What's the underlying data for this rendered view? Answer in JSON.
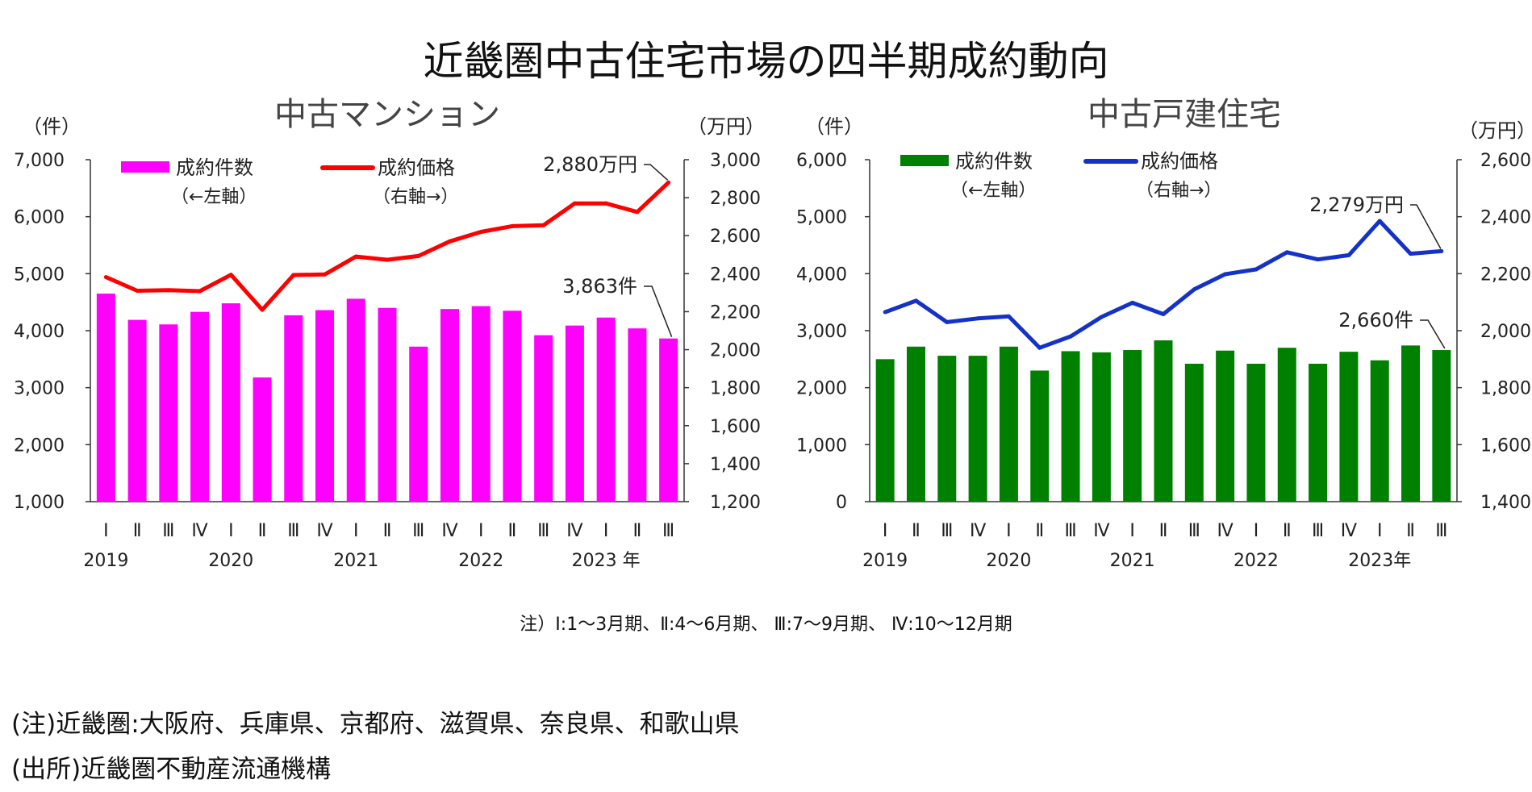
{
  "title": "近畿圏中古住宅市場の四半期成約動向",
  "quarter_note": "注）Ⅰ:1～3月期、Ⅱ:4～6月期、 Ⅲ:7～9月期、 Ⅳ:10～12月期",
  "footnotes": [
    "(注)近畿圏:大阪府、兵庫県、京都府、滋賀県、奈良県、和歌山県",
    "(出所)近畿圏不動産流通機構"
  ],
  "colors": {
    "mansion_bar": "#ff00ff",
    "mansion_line": "#ff0000",
    "house_bar": "#008000",
    "house_line": "#1432c8"
  },
  "chart_data": [
    {
      "type": "bar",
      "title": "中古マンション",
      "left_unit": "（件）",
      "right_unit": "（万円）",
      "quarters": [
        "Ⅰ",
        "Ⅱ",
        "Ⅲ",
        "Ⅳ",
        "Ⅰ",
        "Ⅱ",
        "Ⅲ",
        "Ⅳ",
        "Ⅰ",
        "Ⅱ",
        "Ⅲ",
        "Ⅳ",
        "Ⅰ",
        "Ⅱ",
        "Ⅲ",
        "Ⅳ",
        "Ⅰ",
        "Ⅱ",
        "Ⅲ"
      ],
      "year_labels": [
        {
          "label": "2019",
          "at": 0
        },
        {
          "label": "2020",
          "at": 4
        },
        {
          "label": "2021",
          "at": 8
        },
        {
          "label": "2022",
          "at": 12
        },
        {
          "label": "2023 年",
          "at": 16
        }
      ],
      "ylim_left": [
        1000,
        7000
      ],
      "yticks_left": [
        "1,000",
        "2,000",
        "3,000",
        "4,000",
        "5,000",
        "6,000",
        "7,000"
      ],
      "ylim_right": [
        1200,
        3000
      ],
      "yticks_right": [
        "1,200",
        "1,400",
        "1,600",
        "1,800",
        "2,000",
        "2,200",
        "2,400",
        "2,600",
        "2,800",
        "3,000"
      ],
      "series": [
        {
          "name": "成約件数",
          "sub": "（←左軸）",
          "kind": "bar",
          "axis": "left",
          "values": [
            4650,
            4190,
            4110,
            4330,
            4480,
            3180,
            4270,
            4360,
            4560,
            4400,
            3720,
            4380,
            4430,
            4350,
            3920,
            4090,
            4230,
            4040,
            3863
          ]
        },
        {
          "name": "成約価格",
          "sub": "（右軸→）",
          "kind": "line",
          "axis": "right",
          "values": [
            2382,
            2310,
            2313,
            2308,
            2394,
            2210,
            2393,
            2396,
            2490,
            2473,
            2493,
            2570,
            2620,
            2650,
            2655,
            2770,
            2770,
            2725,
            2880
          ]
        }
      ],
      "annotations": [
        {
          "text": "2,880万円",
          "series": 1,
          "index": 18
        },
        {
          "text": "3,863件",
          "series": 0,
          "index": 18
        }
      ]
    },
    {
      "type": "bar",
      "title": "中古戸建住宅",
      "left_unit": "（件）",
      "right_unit": "（万円）",
      "quarters": [
        "Ⅰ",
        "Ⅱ",
        "Ⅲ",
        "Ⅳ",
        "Ⅰ",
        "Ⅱ",
        "Ⅲ",
        "Ⅳ",
        "Ⅰ",
        "Ⅱ",
        "Ⅲ",
        "Ⅳ",
        "Ⅰ",
        "Ⅱ",
        "Ⅲ",
        "Ⅳ",
        "Ⅰ",
        "Ⅱ",
        "Ⅲ"
      ],
      "year_labels": [
        {
          "label": "2019",
          "at": 0
        },
        {
          "label": "2020",
          "at": 4
        },
        {
          "label": "2021",
          "at": 8
        },
        {
          "label": "2022",
          "at": 12
        },
        {
          "label": "2023年",
          "at": 16
        }
      ],
      "ylim_left": [
        0,
        6000
      ],
      "yticks_left": [
        "0",
        "1,000",
        "2,000",
        "3,000",
        "4,000",
        "5,000",
        "6,000"
      ],
      "ylim_right": [
        1400,
        2600
      ],
      "yticks_right": [
        "1,400",
        "1,600",
        "1,800",
        "2,000",
        "2,200",
        "2,400",
        "2,600"
      ],
      "series": [
        {
          "name": "成約件数",
          "sub": "（←左軸）",
          "kind": "bar",
          "axis": "left",
          "values": [
            2500,
            2720,
            2560,
            2560,
            2720,
            2300,
            2640,
            2620,
            2660,
            2830,
            2420,
            2650,
            2420,
            2700,
            2420,
            2630,
            2480,
            2740,
            2660
          ]
        },
        {
          "name": "成約価格",
          "sub": "（右軸→）",
          "kind": "line",
          "axis": "right",
          "values": [
            2065,
            2105,
            2030,
            2043,
            2050,
            1940,
            1980,
            2048,
            2098,
            2058,
            2145,
            2198,
            2215,
            2275,
            2250,
            2265,
            2385,
            2270,
            2279
          ]
        }
      ],
      "annotations": [
        {
          "text": "2,279万円",
          "series": 1,
          "index": 18
        },
        {
          "text": "2,660件",
          "series": 0,
          "index": 18
        }
      ]
    }
  ]
}
